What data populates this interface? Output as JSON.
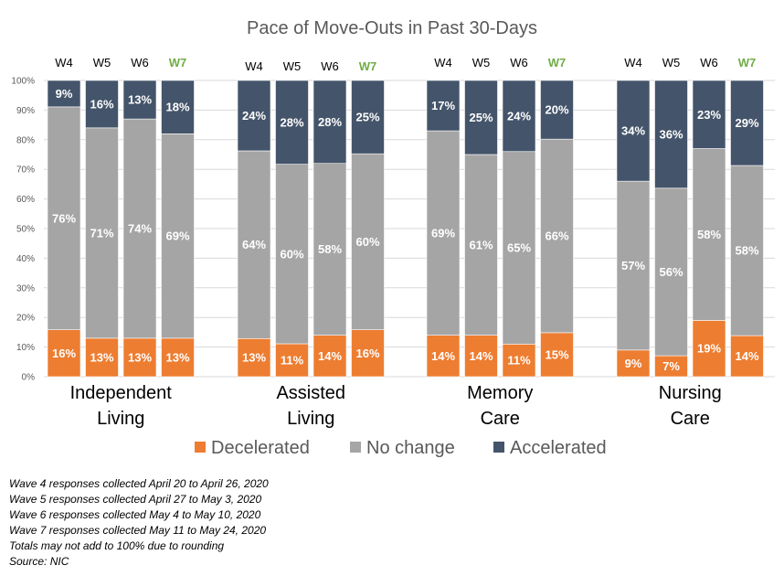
{
  "chart_data": {
    "type": "bar",
    "stacked": true,
    "title": "Pace of Move-Outs in Past 30-Days",
    "xlabel": "",
    "ylabel": "",
    "ylim": [
      0,
      100
    ],
    "y_ticks": [
      "0%",
      "10%",
      "20%",
      "30%",
      "40%",
      "50%",
      "60%",
      "70%",
      "80%",
      "90%",
      "100%"
    ],
    "grid": true,
    "legend_position": "bottom",
    "highlight_wave": "W7",
    "highlight_color": "#70AD47",
    "groups": [
      {
        "name": "Independent Living",
        "label_lines": [
          "Independent",
          "Living"
        ],
        "waves": [
          "W4",
          "W5",
          "W6",
          "W7"
        ],
        "series": [
          {
            "name": "Decelerated",
            "values": [
              16,
              13,
              13,
              13
            ],
            "labels": [
              "16%",
              "13%",
              "13%",
              "13%"
            ]
          },
          {
            "name": "No change",
            "values": [
              76,
              71,
              74,
              69
            ],
            "labels": [
              "76%",
              "71%",
              "74%",
              "69%"
            ]
          },
          {
            "name": "Accelerated",
            "values": [
              9,
              16,
              13,
              18
            ],
            "labels": [
              "9%",
              "16%",
              "13%",
              "18%"
            ]
          }
        ]
      },
      {
        "name": "Assisted Living",
        "label_lines": [
          "Assisted",
          "Living"
        ],
        "waves": [
          "W4",
          "W5",
          "W6",
          "W7"
        ],
        "series": [
          {
            "name": "Decelerated",
            "values": [
              13,
              11,
              14,
              16
            ],
            "labels": [
              "13%",
              "11%",
              "14%",
              "16%"
            ]
          },
          {
            "name": "No change",
            "values": [
              64,
              60,
              58,
              60
            ],
            "labels": [
              "64%",
              "60%",
              "58%",
              "60%"
            ]
          },
          {
            "name": "Accelerated",
            "values": [
              24,
              28,
              28,
              25
            ],
            "labels": [
              "24%",
              "28%",
              "28%",
              "25%"
            ]
          }
        ]
      },
      {
        "name": "Memory Care",
        "label_lines": [
          "Memory",
          "Care"
        ],
        "waves": [
          "W4",
          "W5",
          "W6",
          "W7"
        ],
        "series": [
          {
            "name": "Decelerated",
            "values": [
              14,
              14,
              11,
              15
            ],
            "labels": [
              "14%",
              "14%",
              "11%",
              "15%"
            ]
          },
          {
            "name": "No change",
            "values": [
              69,
              61,
              65,
              66
            ],
            "labels": [
              "69%",
              "61%",
              "65%",
              "66%"
            ]
          },
          {
            "name": "Accelerated",
            "values": [
              17,
              25,
              24,
              20
            ],
            "labels": [
              "17%",
              "25%",
              "24%",
              "20%"
            ]
          }
        ]
      },
      {
        "name": "Nursing Care",
        "label_lines": [
          "Nursing",
          "Care"
        ],
        "waves": [
          "W4",
          "W5",
          "W6",
          "W7"
        ],
        "series": [
          {
            "name": "Decelerated",
            "values": [
              9,
              7,
              19,
              14
            ],
            "labels": [
              "9%",
              "7%",
              "19%",
              "14%"
            ]
          },
          {
            "name": "No change",
            "values": [
              57,
              56,
              58,
              58
            ],
            "labels": [
              "57%",
              "56%",
              "58%",
              "58%"
            ]
          },
          {
            "name": "Accelerated",
            "values": [
              34,
              36,
              23,
              29
            ],
            "labels": [
              "34%",
              "36%",
              "23%",
              "29%"
            ]
          }
        ]
      }
    ],
    "legend": [
      {
        "name": "Decelerated",
        "color": "#ED7D31"
      },
      {
        "name": "No change",
        "color": "#A5A5A5"
      },
      {
        "name": "Accelerated",
        "color": "#44546A"
      }
    ]
  },
  "notes": [
    "Wave 4 responses collected April 20 to April 26, 2020",
    "Wave 5 responses collected April 27 to May 3, 2020",
    "Wave 6 responses collected May 4 to May 10, 2020",
    "Wave 7 responses collected May 11 to May 24, 2020",
    "Totals may not add to 100% due to rounding",
    "Source: NIC"
  ]
}
